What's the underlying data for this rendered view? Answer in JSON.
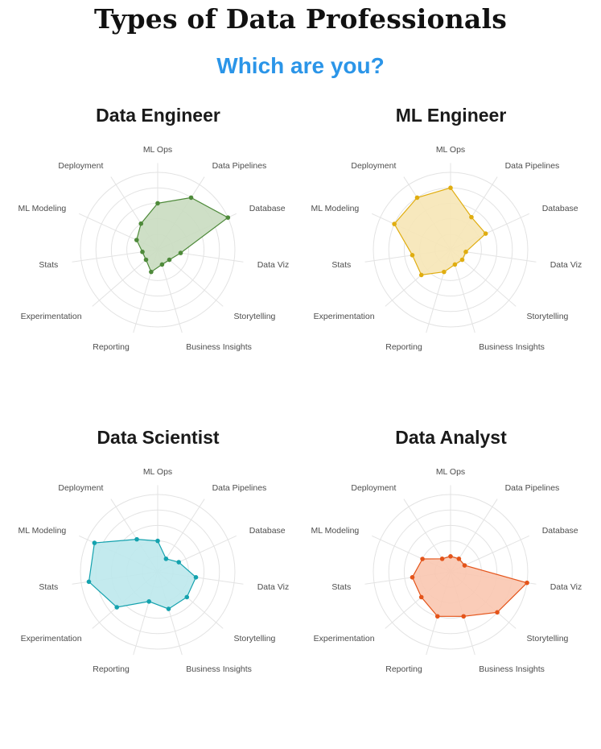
{
  "page": {
    "title": "Types of Data Professionals",
    "subtitle": "Which are you?",
    "subtitle_color": "#2b95e8"
  },
  "chart_data": [
    {
      "type": "radar",
      "title": "Data Engineer",
      "color": "#4e8a3a",
      "fill": "#c9dcc0",
      "axes": [
        "ML Ops",
        "Data Pipelines",
        "Database",
        "Data Viz",
        "Storytelling",
        "Business Insights",
        "Reporting",
        "Experimentation",
        "Stats",
        "ML Modeling",
        "Deployment"
      ],
      "values": [
        6,
        8,
        10,
        3,
        2,
        2,
        3,
        2,
        2,
        3,
        4
      ],
      "rlim": [
        0,
        10
      ],
      "rings": [
        2,
        4,
        6,
        8,
        10
      ],
      "grid": true
    },
    {
      "type": "radar",
      "title": "ML Engineer",
      "color": "#e0ad10",
      "fill": "#f6e6b6",
      "axes": [
        "ML Ops",
        "Data Pipelines",
        "Database",
        "Data Viz",
        "Storytelling",
        "Business Insights",
        "Reporting",
        "Experimentation",
        "Stats",
        "ML Modeling",
        "Deployment"
      ],
      "values": [
        8,
        5,
        5,
        2,
        2,
        2,
        3,
        5,
        5,
        8,
        8
      ],
      "rlim": [
        0,
        10
      ],
      "rings": [
        2,
        4,
        6,
        8,
        10
      ],
      "grid": true
    },
    {
      "type": "radar",
      "title": "Data Scientist",
      "color": "#14a2ae",
      "fill": "#bde8ec",
      "axes": [
        "ML Ops",
        "Data Pipelines",
        "Database",
        "Data Viz",
        "Storytelling",
        "Business Insights",
        "Reporting",
        "Experimentation",
        "Stats",
        "ML Modeling",
        "Deployment"
      ],
      "values": [
        4,
        2,
        3,
        5,
        5,
        5,
        4,
        7,
        9,
        9,
        5
      ],
      "rlim": [
        0,
        10
      ],
      "rings": [
        2,
        4,
        6,
        8,
        10
      ],
      "grid": true
    },
    {
      "type": "radar",
      "title": "Data Analyst",
      "color": "#e4541a",
      "fill": "#f9c7b0",
      "axes": [
        "ML Ops",
        "Data Pipelines",
        "Database",
        "Data Viz",
        "Storytelling",
        "Business Insights",
        "Reporting",
        "Experimentation",
        "Stats",
        "ML Modeling",
        "Deployment"
      ],
      "values": [
        2,
        2,
        2,
        10,
        8,
        6,
        6,
        5,
        5,
        4,
        2
      ],
      "rlim": [
        0,
        10
      ],
      "rings": [
        2,
        4,
        6,
        8,
        10
      ],
      "grid": true
    }
  ]
}
